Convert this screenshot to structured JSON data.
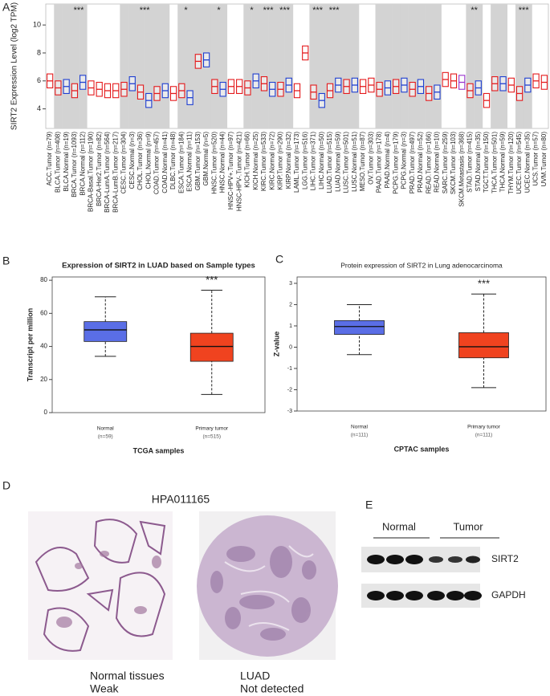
{
  "panel_labels": [
    "A",
    "B",
    "C",
    "D",
    "E"
  ],
  "chart_data": [
    {
      "type": "box",
      "ylabel": "SIRT2 Expression Level (log2 TPM)",
      "categories": [
        "ACC.Tumor (n=79)",
        "BLCA.Tumor (n=408)",
        "BLCA.Normal (n=19)",
        "BRCA.Tumor (n=1093)",
        "BRCA.Normal (n=112)",
        "BRCA-Basal.Tumor (n=190)",
        "BRCA-Her2.Tumor (n=82)",
        "BRCA-LumA.Tumor (n=564)",
        "BRCA-LumB.Tumor (n=217)",
        "CESC.Tumor (n=304)",
        "CESC.Normal (n=3)",
        "CHOL.Tumor (n=36)",
        "CHOL.Normal (n=9)",
        "COAD.Tumor (n=457)",
        "COAD.Normal (n=41)",
        "DLBC.Tumor (n=48)",
        "ESCA.Tumor (n=184)",
        "ESCA.Normal (n=11)",
        "GBM.Tumor (n=153)",
        "GBM.Normal (n=5)",
        "HNSC.Tumor (n=520)",
        "HNSC.Normal (n=44)",
        "HNSC-HPV+.Tumor (n=97)",
        "HNSC-HPV-.Tumor (n=421)",
        "KICH.Tumor (n=66)",
        "KICH.Normal (n=25)",
        "KIRC.Tumor (n=533)",
        "KIRC.Normal (n=72)",
        "KIRP.Tumor (n=290)",
        "KIRP.Normal (n=32)",
        "LAML.Tumor (n=173)",
        "LGG.Tumor (n=516)",
        "LIHC.Tumor (n=371)",
        "LIHC.Normal (n=50)",
        "LUAD.Tumor (n=515)",
        "LUAD.Normal (n=59)",
        "LUSC.Tumor (n=501)",
        "LUSC.Normal (n=51)",
        "MESO.Tumor (n=87)",
        "OV.Tumor (n=303)",
        "PAAD.Tumor (n=178)",
        "PAAD.Normal (n=4)",
        "PCPG.Tumor (n=179)",
        "PCPG.Normal (n=3)",
        "PRAD.Tumor (n=497)",
        "PRAD.Normal (n=52)",
        "READ.Tumor (n=166)",
        "READ.Normal (n=10)",
        "SARC.Tumor (n=259)",
        "SKCM.Tumor (n=103)",
        "SKCM.Metastasis (n=368)",
        "STAD.Tumor (n=415)",
        "STAD.Normal (n=35)",
        "TGCT.Tumor (n=150)",
        "THCA.Tumor (n=501)",
        "THCA.Normal (n=59)",
        "THYM.Tumor (n=120)",
        "UCEC.Tumor (n=545)",
        "UCEC.Normal (n=35)",
        "UCS.Tumor (n=57)",
        "UVM.Tumor (n=80)"
      ],
      "q1": [
        5.5,
        5.0,
        5.1,
        4.8,
        5.4,
        5.0,
        4.9,
        4.8,
        4.8,
        4.9,
        5.3,
        4.7,
        4.1,
        4.6,
        4.8,
        4.6,
        4.8,
        4.3,
        6.9,
        7.0,
        5.1,
        4.9,
        5.1,
        5.1,
        5.0,
        5.5,
        5.3,
        4.9,
        4.9,
        5.2,
        4.8,
        7.5,
        4.7,
        4.1,
        4.8,
        5.2,
        5.1,
        5.2,
        5.1,
        5.2,
        4.9,
        5.0,
        5.1,
        5.2,
        4.9,
        5.1,
        4.6,
        4.7,
        5.6,
        5.5,
        5.4,
        4.8,
        5.0,
        4.1,
        5.3,
        5.3,
        5.2,
        4.6,
        5.2,
        5.5,
        5.4
      ],
      "median": [
        6.0,
        5.5,
        5.6,
        5.3,
        5.9,
        5.5,
        5.4,
        5.3,
        5.3,
        5.4,
        5.8,
        5.2,
        4.6,
        5.1,
        5.3,
        5.1,
        5.3,
        4.8,
        7.4,
        7.5,
        5.6,
        5.4,
        5.6,
        5.6,
        5.5,
        6.0,
        5.8,
        5.4,
        5.4,
        5.7,
        5.3,
        8.0,
        5.2,
        4.6,
        5.3,
        5.7,
        5.6,
        5.7,
        5.6,
        5.7,
        5.4,
        5.5,
        5.6,
        5.7,
        5.4,
        5.6,
        5.1,
        5.2,
        6.1,
        6.0,
        5.9,
        5.3,
        5.5,
        4.6,
        5.8,
        5.8,
        5.7,
        5.1,
        5.7,
        6.0,
        5.9
      ],
      "q3": [
        6.5,
        6.0,
        6.1,
        5.8,
        6.4,
        6.0,
        5.9,
        5.8,
        5.8,
        5.9,
        6.3,
        5.7,
        5.1,
        5.6,
        5.8,
        5.6,
        5.8,
        5.3,
        7.9,
        8.0,
        6.1,
        5.9,
        6.1,
        6.1,
        6.0,
        6.5,
        6.3,
        5.9,
        5.9,
        6.2,
        5.8,
        8.5,
        5.7,
        5.1,
        5.8,
        6.2,
        6.1,
        6.2,
        6.1,
        6.2,
        5.9,
        6.0,
        6.1,
        6.2,
        5.9,
        6.1,
        5.6,
        5.7,
        6.6,
        6.5,
        6.4,
        5.8,
        6.0,
        5.1,
        6.3,
        6.3,
        6.2,
        5.6,
        6.2,
        6.5,
        6.4
      ],
      "annotations": [
        null,
        null,
        null,
        "***",
        null,
        null,
        null,
        null,
        null,
        null,
        null,
        "***",
        null,
        null,
        null,
        null,
        "*",
        null,
        null,
        null,
        "*",
        null,
        null,
        null,
        "*",
        null,
        "***",
        null,
        "***",
        null,
        null,
        null,
        "***",
        null,
        "***",
        null,
        null,
        null,
        null,
        null,
        null,
        null,
        null,
        null,
        null,
        null,
        null,
        null,
        null,
        null,
        null,
        "**",
        null,
        null,
        null,
        null,
        null,
        "***",
        null,
        null,
        null
      ],
      "ylim": [
        2.6,
        11.5
      ],
      "yticks": [
        4,
        6,
        8,
        10
      ],
      "shading": true,
      "box_style": "outline",
      "color_map": {
        "Metastasis": "#9932cc",
        "Normal": "#1f3fd1",
        "Tumor": "#e41a1c"
      }
    },
    {
      "type": "box",
      "title": "Expression of SIRT2 in LUAD based on Sample types",
      "ylabel": "Transcript per million",
      "xlabel": "TCGA samples",
      "categories": [
        "Normal",
        "Primary tumor"
      ],
      "counts": [
        "(n=59)",
        "(n=515)"
      ],
      "min": [
        34,
        11
      ],
      "q1": [
        43,
        31
      ],
      "median": [
        50,
        40
      ],
      "q3": [
        55,
        48
      ],
      "max": [
        70,
        74
      ],
      "annotations": [
        null,
        "***"
      ],
      "colors": [
        "#5a6ee6",
        "#f0431f"
      ],
      "box_style": "filled",
      "ylim": [
        0,
        82
      ],
      "yticks": [
        0,
        20,
        40,
        60,
        80
      ]
    },
    {
      "type": "box",
      "title": "Protein expression of SIRT2 in Lung adenocarcinoma",
      "ylabel": "Z-value",
      "xlabel": "CPTAC samples",
      "categories": [
        "Normal",
        "Primary tumor"
      ],
      "counts": [
        "(n=111)",
        "(n=111)"
      ],
      "min": [
        -0.35,
        -1.9
      ],
      "q1": [
        0.6,
        -0.5
      ],
      "median": [
        0.97,
        0.02
      ],
      "q3": [
        1.25,
        0.68
      ],
      "max": [
        2.0,
        2.5
      ],
      "annotations": [
        null,
        "***"
      ],
      "colors": [
        "#5a6ee6",
        "#f0431f"
      ],
      "box_style": "filled",
      "ylim": [
        -3,
        3.3
      ],
      "yticks": [
        -3,
        -2,
        -1,
        0,
        1,
        2,
        3
      ]
    }
  ],
  "ihc": {
    "title": "HPA011165",
    "images": [
      {
        "tissue": "Normal tissues",
        "level": "Weak"
      },
      {
        "tissue": "LUAD",
        "level": "Not detected"
      }
    ]
  },
  "western": {
    "groups": [
      "Normal",
      "Tumor"
    ],
    "bands": [
      "SIRT2",
      "GAPDH"
    ]
  }
}
